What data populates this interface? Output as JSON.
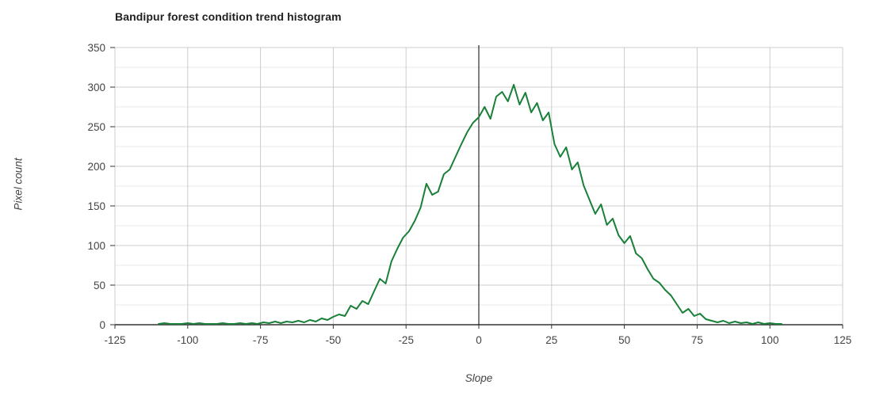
{
  "page": {
    "background": "#ffffff"
  },
  "chart_data": {
    "type": "line",
    "title": "Bandipur forest condition trend histogram",
    "xlabel": "Slope",
    "ylabel": "Pixel count",
    "xlim": [
      -125,
      125
    ],
    "ylim": [
      0,
      350
    ],
    "grid": true,
    "legend_position": "none",
    "x_ticks": [
      -125,
      -100,
      -75,
      -50,
      -25,
      0,
      25,
      50,
      75,
      100,
      125
    ],
    "x_tick_labels": [
      "-125",
      "-100",
      "-75",
      "-50",
      "-25",
      "0",
      "25",
      "50",
      "75",
      "100",
      "125"
    ],
    "y_ticks": [
      0,
      50,
      100,
      150,
      200,
      250,
      300,
      350
    ],
    "y_tick_labels": [
      "0",
      "50",
      "100",
      "150",
      "200",
      "250",
      "300",
      "350"
    ],
    "y_minor_ticks": [
      25,
      75,
      125,
      175,
      225,
      275,
      325
    ],
    "zero_reference_line_x": 0,
    "bin_width": 2,
    "series": [
      {
        "name": "Pixel count",
        "color": "#188038",
        "x": [
          -110,
          -108,
          -106,
          -104,
          -102,
          -100,
          -98,
          -96,
          -94,
          -92,
          -90,
          -88,
          -86,
          -84,
          -82,
          -80,
          -78,
          -76,
          -74,
          -72,
          -70,
          -68,
          -66,
          -64,
          -62,
          -60,
          -58,
          -56,
          -54,
          -52,
          -50,
          -48,
          -46,
          -44,
          -42,
          -40,
          -38,
          -36,
          -34,
          -32,
          -30,
          -28,
          -26,
          -24,
          -22,
          -20,
          -18,
          -16,
          -14,
          -12,
          -10,
          -8,
          -6,
          -4,
          -2,
          0,
          2,
          4,
          6,
          8,
          10,
          12,
          14,
          16,
          18,
          20,
          22,
          24,
          26,
          28,
          30,
          32,
          34,
          36,
          38,
          40,
          42,
          44,
          46,
          48,
          50,
          52,
          54,
          56,
          58,
          60,
          62,
          64,
          66,
          68,
          70,
          72,
          74,
          76,
          78,
          80,
          82,
          84,
          86,
          88,
          90,
          92,
          94,
          96,
          98,
          100,
          102,
          104
        ],
        "values": [
          1,
          2,
          1,
          1,
          1,
          2,
          1,
          2,
          1,
          1,
          1,
          2,
          1,
          1,
          2,
          1,
          2,
          1,
          3,
          2,
          4,
          2,
          4,
          3,
          5,
          3,
          6,
          4,
          8,
          6,
          10,
          13,
          11,
          24,
          20,
          30,
          26,
          42,
          58,
          52,
          80,
          96,
          110,
          118,
          131,
          148,
          178,
          164,
          168,
          190,
          196,
          212,
          228,
          243,
          255,
          262,
          275,
          260,
          288,
          294,
          282,
          303,
          278,
          293,
          268,
          280,
          258,
          268,
          228,
          212,
          224,
          196,
          205,
          176,
          158,
          140,
          152,
          126,
          134,
          113,
          103,
          112,
          90,
          84,
          70,
          58,
          53,
          44,
          37,
          26,
          15,
          20,
          11,
          14,
          7,
          5,
          3,
          5,
          2,
          4,
          2,
          3,
          1,
          3,
          1,
          2,
          1,
          1
        ]
      }
    ],
    "colors": {
      "line": "#188038",
      "grid_major": "#cccccc",
      "grid_minor": "#e8e8e8",
      "axis_line": "#333333",
      "zero_line": "#000000",
      "tick_text": "#444444",
      "axis_title_text": "#444444",
      "title_text": "#212121",
      "background": "#ffffff"
    }
  }
}
